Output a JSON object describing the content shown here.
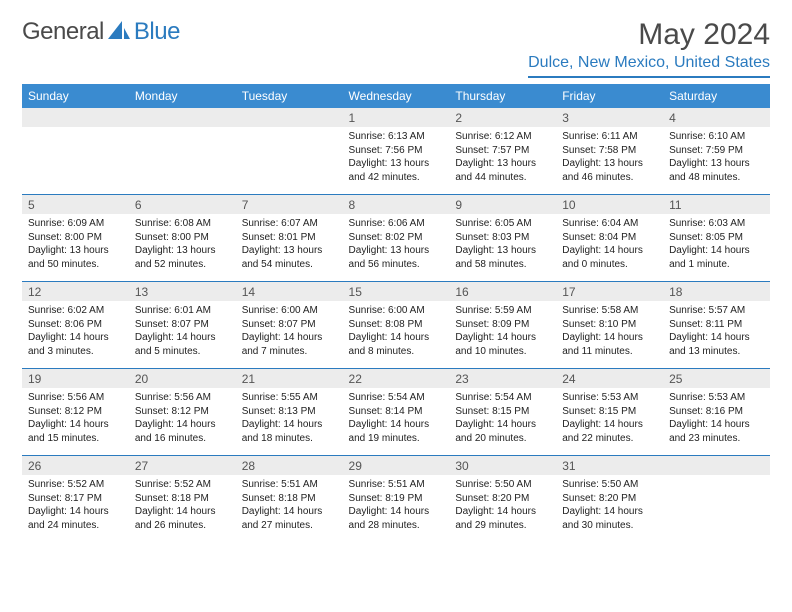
{
  "logo": {
    "text1": "General",
    "text2": "Blue"
  },
  "header": {
    "month_title": "May 2024",
    "location": "Dulce, New Mexico, United States"
  },
  "colors": {
    "header_bg": "#3a8bd0",
    "accent": "#2b7bbf",
    "daynum_bg": "#ececec",
    "text": "#000000"
  },
  "day_headers": [
    "Sunday",
    "Monday",
    "Tuesday",
    "Wednesday",
    "Thursday",
    "Friday",
    "Saturday"
  ],
  "weeks": [
    {
      "nums": [
        "",
        "",
        "",
        "1",
        "2",
        "3",
        "4"
      ],
      "cells": [
        null,
        null,
        null,
        {
          "sunrise": "Sunrise: 6:13 AM",
          "sunset": "Sunset: 7:56 PM",
          "day1": "Daylight: 13 hours",
          "day2": "and 42 minutes."
        },
        {
          "sunrise": "Sunrise: 6:12 AM",
          "sunset": "Sunset: 7:57 PM",
          "day1": "Daylight: 13 hours",
          "day2": "and 44 minutes."
        },
        {
          "sunrise": "Sunrise: 6:11 AM",
          "sunset": "Sunset: 7:58 PM",
          "day1": "Daylight: 13 hours",
          "day2": "and 46 minutes."
        },
        {
          "sunrise": "Sunrise: 6:10 AM",
          "sunset": "Sunset: 7:59 PM",
          "day1": "Daylight: 13 hours",
          "day2": "and 48 minutes."
        }
      ]
    },
    {
      "nums": [
        "5",
        "6",
        "7",
        "8",
        "9",
        "10",
        "11"
      ],
      "cells": [
        {
          "sunrise": "Sunrise: 6:09 AM",
          "sunset": "Sunset: 8:00 PM",
          "day1": "Daylight: 13 hours",
          "day2": "and 50 minutes."
        },
        {
          "sunrise": "Sunrise: 6:08 AM",
          "sunset": "Sunset: 8:00 PM",
          "day1": "Daylight: 13 hours",
          "day2": "and 52 minutes."
        },
        {
          "sunrise": "Sunrise: 6:07 AM",
          "sunset": "Sunset: 8:01 PM",
          "day1": "Daylight: 13 hours",
          "day2": "and 54 minutes."
        },
        {
          "sunrise": "Sunrise: 6:06 AM",
          "sunset": "Sunset: 8:02 PM",
          "day1": "Daylight: 13 hours",
          "day2": "and 56 minutes."
        },
        {
          "sunrise": "Sunrise: 6:05 AM",
          "sunset": "Sunset: 8:03 PM",
          "day1": "Daylight: 13 hours",
          "day2": "and 58 minutes."
        },
        {
          "sunrise": "Sunrise: 6:04 AM",
          "sunset": "Sunset: 8:04 PM",
          "day1": "Daylight: 14 hours",
          "day2": "and 0 minutes."
        },
        {
          "sunrise": "Sunrise: 6:03 AM",
          "sunset": "Sunset: 8:05 PM",
          "day1": "Daylight: 14 hours",
          "day2": "and 1 minute."
        }
      ]
    },
    {
      "nums": [
        "12",
        "13",
        "14",
        "15",
        "16",
        "17",
        "18"
      ],
      "cells": [
        {
          "sunrise": "Sunrise: 6:02 AM",
          "sunset": "Sunset: 8:06 PM",
          "day1": "Daylight: 14 hours",
          "day2": "and 3 minutes."
        },
        {
          "sunrise": "Sunrise: 6:01 AM",
          "sunset": "Sunset: 8:07 PM",
          "day1": "Daylight: 14 hours",
          "day2": "and 5 minutes."
        },
        {
          "sunrise": "Sunrise: 6:00 AM",
          "sunset": "Sunset: 8:07 PM",
          "day1": "Daylight: 14 hours",
          "day2": "and 7 minutes."
        },
        {
          "sunrise": "Sunrise: 6:00 AM",
          "sunset": "Sunset: 8:08 PM",
          "day1": "Daylight: 14 hours",
          "day2": "and 8 minutes."
        },
        {
          "sunrise": "Sunrise: 5:59 AM",
          "sunset": "Sunset: 8:09 PM",
          "day1": "Daylight: 14 hours",
          "day2": "and 10 minutes."
        },
        {
          "sunrise": "Sunrise: 5:58 AM",
          "sunset": "Sunset: 8:10 PM",
          "day1": "Daylight: 14 hours",
          "day2": "and 11 minutes."
        },
        {
          "sunrise": "Sunrise: 5:57 AM",
          "sunset": "Sunset: 8:11 PM",
          "day1": "Daylight: 14 hours",
          "day2": "and 13 minutes."
        }
      ]
    },
    {
      "nums": [
        "19",
        "20",
        "21",
        "22",
        "23",
        "24",
        "25"
      ],
      "cells": [
        {
          "sunrise": "Sunrise: 5:56 AM",
          "sunset": "Sunset: 8:12 PM",
          "day1": "Daylight: 14 hours",
          "day2": "and 15 minutes."
        },
        {
          "sunrise": "Sunrise: 5:56 AM",
          "sunset": "Sunset: 8:12 PM",
          "day1": "Daylight: 14 hours",
          "day2": "and 16 minutes."
        },
        {
          "sunrise": "Sunrise: 5:55 AM",
          "sunset": "Sunset: 8:13 PM",
          "day1": "Daylight: 14 hours",
          "day2": "and 18 minutes."
        },
        {
          "sunrise": "Sunrise: 5:54 AM",
          "sunset": "Sunset: 8:14 PM",
          "day1": "Daylight: 14 hours",
          "day2": "and 19 minutes."
        },
        {
          "sunrise": "Sunrise: 5:54 AM",
          "sunset": "Sunset: 8:15 PM",
          "day1": "Daylight: 14 hours",
          "day2": "and 20 minutes."
        },
        {
          "sunrise": "Sunrise: 5:53 AM",
          "sunset": "Sunset: 8:15 PM",
          "day1": "Daylight: 14 hours",
          "day2": "and 22 minutes."
        },
        {
          "sunrise": "Sunrise: 5:53 AM",
          "sunset": "Sunset: 8:16 PM",
          "day1": "Daylight: 14 hours",
          "day2": "and 23 minutes."
        }
      ]
    },
    {
      "nums": [
        "26",
        "27",
        "28",
        "29",
        "30",
        "31",
        ""
      ],
      "cells": [
        {
          "sunrise": "Sunrise: 5:52 AM",
          "sunset": "Sunset: 8:17 PM",
          "day1": "Daylight: 14 hours",
          "day2": "and 24 minutes."
        },
        {
          "sunrise": "Sunrise: 5:52 AM",
          "sunset": "Sunset: 8:18 PM",
          "day1": "Daylight: 14 hours",
          "day2": "and 26 minutes."
        },
        {
          "sunrise": "Sunrise: 5:51 AM",
          "sunset": "Sunset: 8:18 PM",
          "day1": "Daylight: 14 hours",
          "day2": "and 27 minutes."
        },
        {
          "sunrise": "Sunrise: 5:51 AM",
          "sunset": "Sunset: 8:19 PM",
          "day1": "Daylight: 14 hours",
          "day2": "and 28 minutes."
        },
        {
          "sunrise": "Sunrise: 5:50 AM",
          "sunset": "Sunset: 8:20 PM",
          "day1": "Daylight: 14 hours",
          "day2": "and 29 minutes."
        },
        {
          "sunrise": "Sunrise: 5:50 AM",
          "sunset": "Sunset: 8:20 PM",
          "day1": "Daylight: 14 hours",
          "day2": "and 30 minutes."
        },
        null
      ]
    }
  ]
}
